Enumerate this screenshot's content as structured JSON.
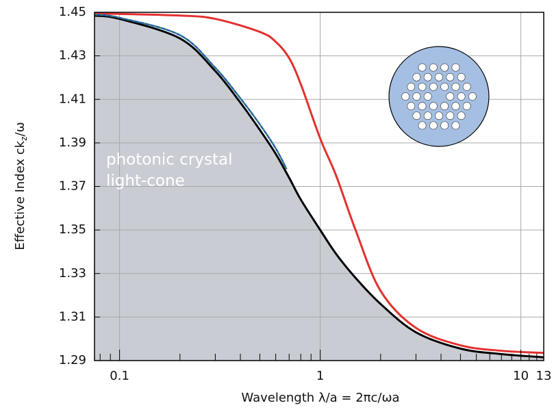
{
  "chart_data": {
    "type": "line",
    "xlabel": "Wavelength  λ/a =  2πc/ωa",
    "ylabel": [
      "Effective Index ck",
      "z",
      "/ω"
    ],
    "annotation": [
      "photonic crystal",
      "light-cone"
    ],
    "xscale": "log",
    "xlim": [
      0.075,
      13
    ],
    "ylim": [
      1.29,
      1.45
    ],
    "xticks": [
      0.1,
      1,
      10,
      13
    ],
    "xminorticks": [
      0.08,
      0.09,
      0.2,
      0.3,
      0.4,
      0.5,
      0.6,
      0.7,
      0.8,
      0.9,
      2,
      3,
      4,
      5,
      6,
      7,
      8,
      9,
      11,
      12
    ],
    "yticks": [
      1.29,
      1.31,
      1.33,
      1.35,
      1.37,
      1.39,
      1.41,
      1.43,
      1.45
    ],
    "grid": true,
    "fill_color": "#c9ccd3",
    "series": [
      {
        "color": "#000000",
        "fill": true,
        "x": [
          0.075,
          0.1,
          0.2,
          0.3,
          0.4,
          0.5,
          0.6,
          0.7,
          0.8,
          1.0,
          1.2,
          1.5,
          2,
          3,
          5,
          8,
          13
        ],
        "values": [
          1.4485,
          1.447,
          1.438,
          1.423,
          1.4085,
          1.396,
          1.385,
          1.374,
          1.364,
          1.35,
          1.339,
          1.328,
          1.316,
          1.303,
          1.2955,
          1.293,
          1.2915
        ]
      },
      {
        "color": "#e2302e",
        "x": [
          0.075,
          0.2,
          0.3,
          0.5,
          0.6,
          0.7,
          0.8,
          1.0,
          1.2,
          1.5,
          2,
          3,
          5,
          8,
          13
        ],
        "values": [
          1.4495,
          1.4485,
          1.447,
          1.441,
          1.4365,
          1.429,
          1.417,
          1.392,
          1.375,
          1.35,
          1.322,
          1.305,
          1.297,
          1.2945,
          1.2935
        ]
      },
      {
        "color": "#2f8a6e",
        "dashed": true,
        "x": [
          0.075,
          0.1,
          0.2,
          0.3,
          0.4,
          0.5,
          0.6,
          0.68
        ],
        "values": [
          1.449,
          1.4475,
          1.4395,
          1.4245,
          1.4105,
          1.3985,
          1.3875,
          1.378
        ]
      }
    ]
  }
}
